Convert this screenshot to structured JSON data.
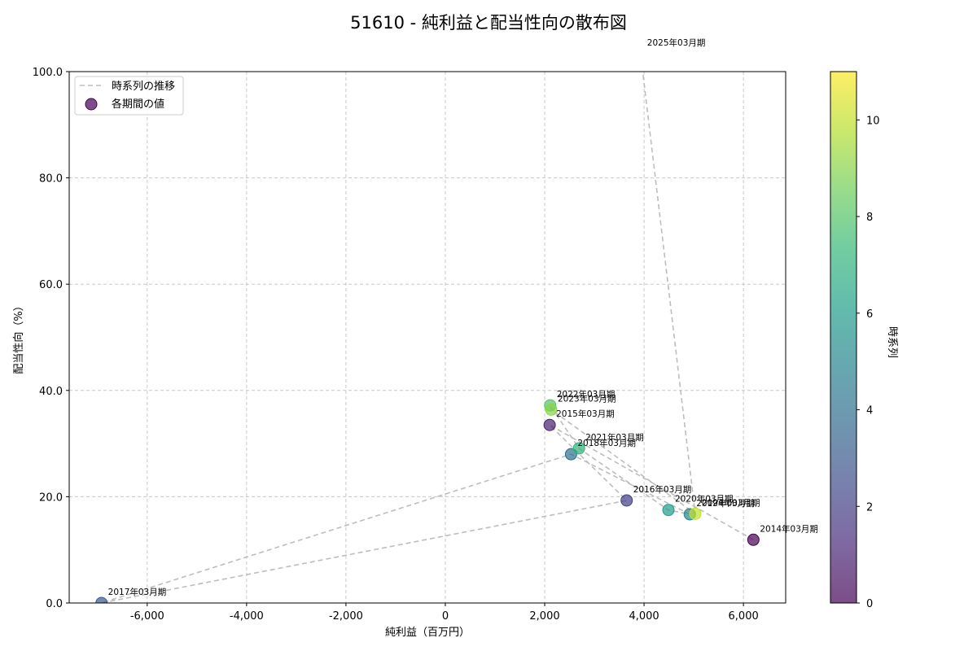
{
  "chart_data": {
    "type": "scatter",
    "title": "51610 - 純利益と配当性向の散布図",
    "xlabel": "純利益（百万円）",
    "ylabel": "配当性向（%）",
    "xlim": [
      -7570,
      6850
    ],
    "ylim": [
      0,
      100
    ],
    "grid": true,
    "xticks": [
      -6000,
      -4000,
      -2000,
      0,
      2000,
      4000,
      6000
    ],
    "xtick_labels": [
      "-6,000",
      "-4,000",
      "-2,000",
      "0",
      "2,000",
      "4,000",
      "6,000"
    ],
    "yticks": [
      0,
      20,
      40,
      60,
      80,
      100
    ],
    "ytick_labels": [
      "0.0",
      "20.0",
      "40.0",
      "60.0",
      "80.0",
      "100.0"
    ],
    "legend": {
      "position": "upper left",
      "entries": [
        "時系列の推移",
        "各期間の値"
      ]
    },
    "colorbar": {
      "label": "時系列",
      "colormap": "viridis",
      "range": [
        0,
        11
      ],
      "ticks": [
        0,
        2,
        4,
        6,
        8,
        10
      ]
    },
    "points": [
      {
        "label": "2014年03月期",
        "t": 0,
        "x": 6200,
        "y": 11.9
      },
      {
        "label": "2015年03月期",
        "t": 1,
        "x": 2100,
        "y": 33.5
      },
      {
        "label": "2016年03月期",
        "t": 2,
        "x": 3650,
        "y": 19.3
      },
      {
        "label": "2017年03月期",
        "t": 3,
        "x": -6920,
        "y": 0.0
      },
      {
        "label": "2018年03月期",
        "t": 4,
        "x": 2530,
        "y": 28.0
      },
      {
        "label": "2019年03月期",
        "t": 5,
        "x": 4920,
        "y": 16.7
      },
      {
        "label": "2020年03月期",
        "t": 6,
        "x": 4490,
        "y": 17.5
      },
      {
        "label": "2021年03月期",
        "t": 7,
        "x": 2690,
        "y": 29.1
      },
      {
        "label": "2022年03月期",
        "t": 8,
        "x": 2110,
        "y": 37.2
      },
      {
        "label": "2023年03月期",
        "t": 9,
        "x": 2130,
        "y": 36.4
      },
      {
        "label": "2024年03月期",
        "t": 10,
        "x": 5030,
        "y": 16.8
      },
      {
        "label": "2025年03月期",
        "t": 11,
        "x": 3930,
        "y": 103.4
      }
    ]
  }
}
